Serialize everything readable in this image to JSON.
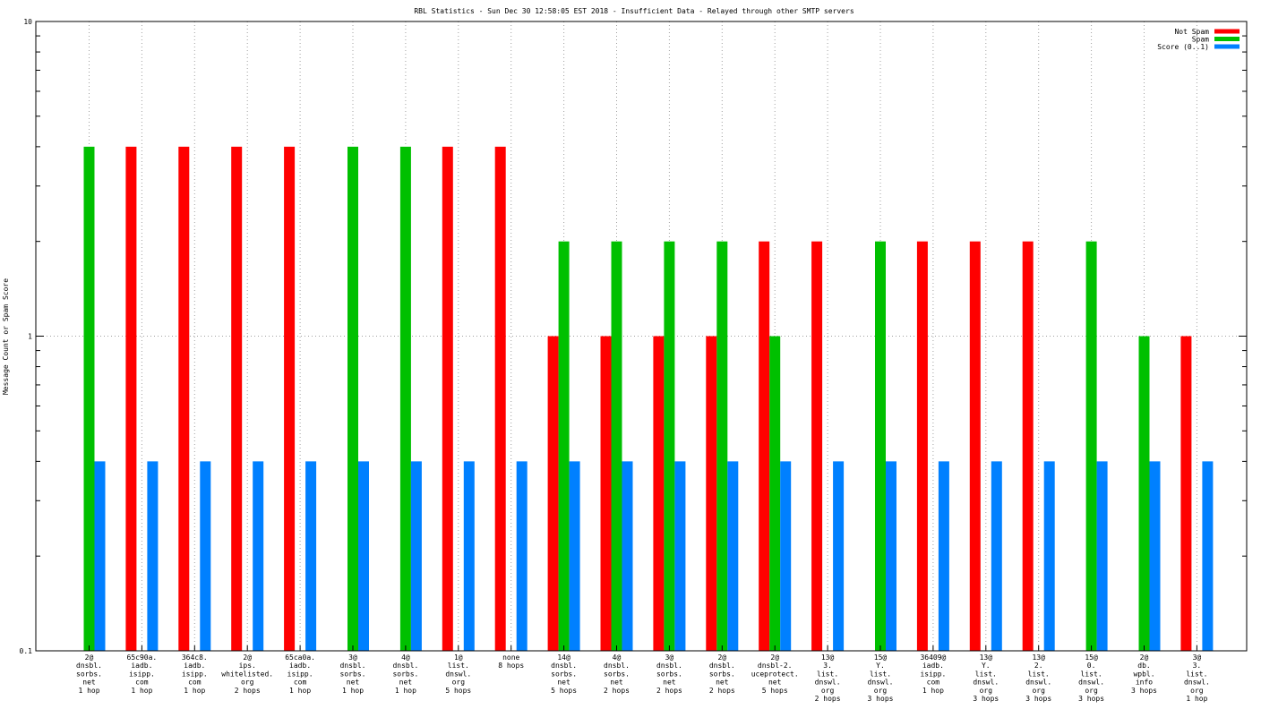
{
  "chart_data": {
    "type": "bar",
    "title": "RBL Statistics - Sun Dec 30 12:58:05 EST 2018 - Insufficient Data - Relayed through other SMTP servers",
    "ylabel": "Message Count or Spam Score",
    "xlabel": "",
    "yscale": "log",
    "ylim": [
      0.1,
      10
    ],
    "y_ticks": [
      {
        "value": 0.1,
        "label": "0.1"
      },
      {
        "value": 1,
        "label": "1"
      },
      {
        "value": 10,
        "label": "10"
      }
    ],
    "grid": true,
    "legend_position": "top-right",
    "categories": [
      [
        "2@",
        "dnsbl.",
        "sorbs.",
        "net",
        "1 hop"
      ],
      [
        "65c90a.",
        "iadb.",
        "isipp.",
        "com",
        "1 hop"
      ],
      [
        "364c8.",
        "iadb.",
        "isipp.",
        "com",
        "1 hop"
      ],
      [
        "2@",
        "ips.",
        "whitelisted.",
        "org",
        "2 hops"
      ],
      [
        "65ca0a.",
        "iadb.",
        "isipp.",
        "com",
        "1 hop"
      ],
      [
        "3@",
        "dnsbl.",
        "sorbs.",
        "net",
        "1 hop"
      ],
      [
        "4@",
        "dnsbl.",
        "sorbs.",
        "net",
        "1 hop"
      ],
      [
        "1@",
        "list.",
        "dnswl.",
        "org",
        "5 hops"
      ],
      [
        "none",
        "8 hops"
      ],
      [
        "14@",
        "dnsbl.",
        "sorbs.",
        "net",
        "5 hops"
      ],
      [
        "4@",
        "dnsbl.",
        "sorbs.",
        "net",
        "2 hops"
      ],
      [
        "3@",
        "dnsbl.",
        "sorbs.",
        "net",
        "2 hops"
      ],
      [
        "2@",
        "dnsbl.",
        "sorbs.",
        "net",
        "2 hops"
      ],
      [
        "2@",
        "dnsbl-2.",
        "uceprotect.",
        "net",
        "5 hops"
      ],
      [
        "13@",
        "3.",
        "list.",
        "dnswl.",
        "org",
        "2 hops"
      ],
      [
        "15@",
        "Y.",
        "list.",
        "dnswl.",
        "org",
        "3 hops"
      ],
      [
        "36409@",
        "iadb.",
        "isipp.",
        "com",
        "1 hop"
      ],
      [
        "13@",
        "Y.",
        "list.",
        "dnswl.",
        "org",
        "3 hops"
      ],
      [
        "13@",
        "2.",
        "list.",
        "dnswl.",
        "org",
        "3 hops"
      ],
      [
        "15@",
        "0.",
        "list.",
        "dnswl.",
        "org",
        "3 hops"
      ],
      [
        "2@",
        "db.",
        "wpbl.",
        "info",
        "3 hops"
      ],
      [
        "3@",
        "3.",
        "list.",
        "dnswl.",
        "org",
        "1 hop"
      ]
    ],
    "series": [
      {
        "name": "Not Spam",
        "color": "#ff0000",
        "values": [
          null,
          4,
          4,
          4,
          4,
          null,
          null,
          4,
          4,
          1,
          1,
          1,
          1,
          2,
          2,
          null,
          2,
          2,
          2,
          null,
          null,
          1
        ]
      },
      {
        "name": "Spam",
        "color": "#00c000",
        "values": [
          4,
          null,
          null,
          null,
          null,
          4,
          4,
          null,
          null,
          2,
          2,
          2,
          2,
          1,
          null,
          2,
          null,
          null,
          null,
          2,
          1,
          null
        ]
      },
      {
        "name": "Score (0..1)",
        "color": "#0080ff",
        "values": [
          0.4,
          0.4,
          0.4,
          0.4,
          0.4,
          0.4,
          0.4,
          0.4,
          0.4,
          0.4,
          0.4,
          0.4,
          0.4,
          0.4,
          0.4,
          0.4,
          0.4,
          0.4,
          0.4,
          0.4,
          0.4,
          0.4
        ]
      }
    ]
  }
}
